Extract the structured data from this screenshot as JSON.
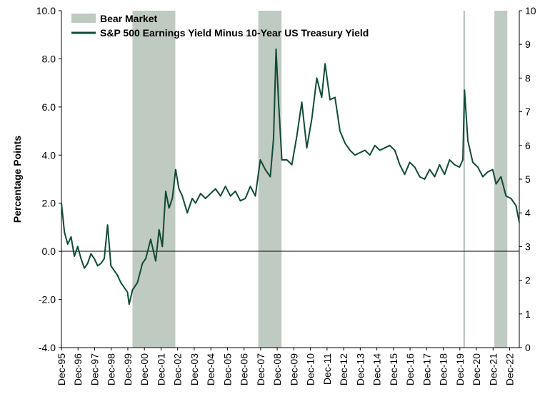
{
  "chart_data": {
    "type": "line",
    "title": "",
    "ylabel": "Percentage Points",
    "ylabel_right": "",
    "ylim": [
      -4.0,
      10.0
    ],
    "ylim_right": [
      0,
      10
    ],
    "yticks_left": [
      "10.0",
      "8.0",
      "6.0",
      "4.0",
      "2.0",
      "0.0",
      "-2.0",
      "-4.0"
    ],
    "yticks_right": [
      "10",
      "9",
      "8",
      "7",
      "6",
      "5",
      "4",
      "3",
      "2",
      "1",
      "0"
    ],
    "xticks": [
      "Dec-95",
      "Dec-96",
      "Dec-97",
      "Dec-98",
      "Dec-99",
      "Dec-00",
      "Dec-01",
      "Dec-02",
      "Dec-03",
      "Dec-04",
      "Dec-05",
      "Dec-06",
      "Dec-07",
      "Dec-08",
      "Dec-09",
      "Dec-10",
      "Dec-11",
      "Dec-12",
      "Dec-13",
      "Dec-14",
      "Dec-15",
      "Dec-16",
      "Dec-17",
      "Dec-18",
      "Dec-19",
      "Dec-20",
      "Dec-21",
      "Dec-22"
    ],
    "x_range": [
      1995.92,
      2023.5
    ],
    "grid": false,
    "legend_position": "top-left",
    "legend": [
      {
        "label": "Bear Market",
        "type": "area",
        "color": "#bfcac1"
      },
      {
        "label": "S&P 500 Earnings Yield Minus 10-Year US Treasury Yield",
        "type": "line",
        "color": "#0f4a36"
      }
    ],
    "bear_markets": [
      {
        "start": 2000.2,
        "end": 2002.78
      },
      {
        "start": 2007.78,
        "end": 2009.18
      },
      {
        "start": 2020.13,
        "end": 2020.23
      },
      {
        "start": 2022.0,
        "end": 2022.78
      }
    ],
    "series": [
      {
        "name": "S&P 500 Earnings Yield Minus 10-Year US Treasury Yield",
        "color": "#0f4a36",
        "x": [
          1995.92,
          1996.1,
          1996.3,
          1996.5,
          1996.7,
          1996.9,
          1997.1,
          1997.3,
          1997.5,
          1997.7,
          1997.9,
          1998.1,
          1998.3,
          1998.5,
          1998.7,
          1998.9,
          1999.1,
          1999.3,
          1999.5,
          1999.7,
          1999.9,
          2000.0,
          2000.2,
          2000.5,
          2000.8,
          2001.0,
          2001.3,
          2001.6,
          2001.8,
          2002.0,
          2002.2,
          2002.4,
          2002.6,
          2002.8,
          2003.0,
          2003.2,
          2003.5,
          2003.8,
          2004.0,
          2004.3,
          2004.6,
          2004.9,
          2005.2,
          2005.5,
          2005.8,
          2006.1,
          2006.4,
          2006.7,
          2007.0,
          2007.3,
          2007.6,
          2007.9,
          2008.2,
          2008.5,
          2008.7,
          2008.85,
          2009.0,
          2009.2,
          2009.5,
          2009.8,
          2010.1,
          2010.4,
          2010.7,
          2011.0,
          2011.3,
          2011.6,
          2011.8,
          2012.1,
          2012.4,
          2012.7,
          2013.0,
          2013.3,
          2013.6,
          2013.9,
          2014.2,
          2014.5,
          2014.8,
          2015.1,
          2015.4,
          2015.7,
          2016.0,
          2016.3,
          2016.6,
          2016.9,
          2017.2,
          2017.5,
          2017.8,
          2018.1,
          2018.4,
          2018.7,
          2019.0,
          2019.3,
          2019.6,
          2019.9,
          2020.1,
          2020.2,
          2020.4,
          2020.7,
          2021.0,
          2021.3,
          2021.6,
          2021.9,
          2022.1,
          2022.4,
          2022.7,
          2023.0,
          2023.3,
          2023.5
        ],
        "values": [
          2.0,
          0.8,
          0.3,
          0.6,
          -0.2,
          0.2,
          -0.3,
          -0.7,
          -0.5,
          -0.1,
          -0.3,
          -0.6,
          -0.5,
          -0.3,
          1.1,
          -0.6,
          -0.8,
          -1.0,
          -1.3,
          -1.5,
          -1.7,
          -2.2,
          -1.6,
          -1.3,
          -0.5,
          -0.3,
          0.5,
          -0.4,
          0.9,
          0.2,
          2.5,
          1.8,
          2.2,
          3.4,
          2.6,
          2.3,
          1.6,
          2.2,
          2.0,
          2.4,
          2.2,
          2.4,
          2.6,
          2.3,
          2.7,
          2.3,
          2.5,
          2.1,
          2.2,
          2.7,
          2.3,
          3.8,
          3.4,
          3.1,
          4.7,
          8.4,
          6.2,
          3.8,
          3.8,
          3.6,
          4.8,
          6.2,
          4.3,
          5.5,
          7.2,
          6.4,
          7.8,
          6.3,
          6.4,
          5.0,
          4.5,
          4.2,
          4.0,
          4.1,
          4.2,
          4.0,
          4.4,
          4.2,
          4.3,
          4.4,
          4.2,
          3.6,
          3.2,
          3.7,
          3.5,
          3.1,
          3.0,
          3.4,
          3.1,
          3.6,
          3.2,
          3.8,
          3.6,
          3.5,
          3.8,
          6.7,
          4.6,
          3.7,
          3.5,
          3.1,
          3.3,
          3.4,
          2.8,
          3.1,
          2.3,
          2.2,
          1.9,
          1.2
        ]
      }
    ]
  }
}
